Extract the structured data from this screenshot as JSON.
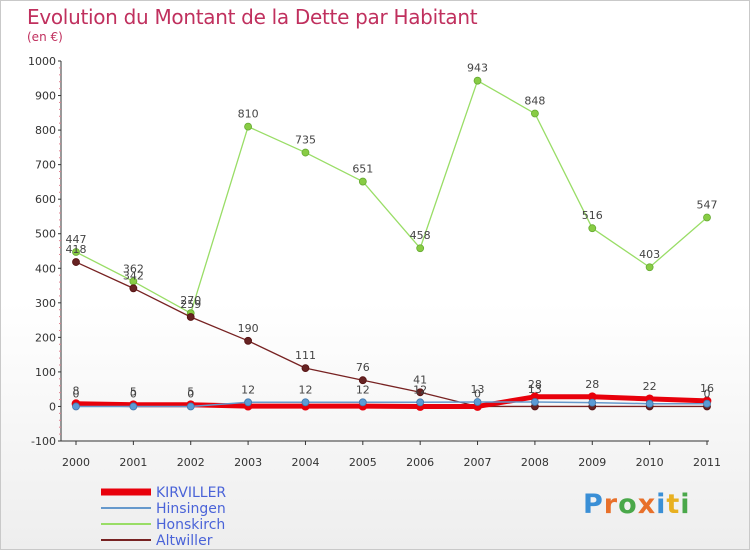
{
  "title": "Evolution du Montant de la Dette par Habitant",
  "unit": "(en €)",
  "logo": {
    "text": "Proxiti",
    "colors": [
      "#3a8fd6",
      "#e8702a",
      "#4aa84a",
      "#e8702a",
      "#3a8fd6",
      "#e8b020",
      "#4aa84a"
    ]
  },
  "chart_data": {
    "type": "line",
    "x": [
      "2000",
      "2001",
      "2002",
      "2003",
      "2004",
      "2005",
      "2006",
      "2007",
      "2008",
      "2009",
      "2010",
      "2011"
    ],
    "ylim": [
      -100,
      1000
    ],
    "yticks": [
      "-100",
      "0",
      "100",
      "200",
      "300",
      "400",
      "500",
      "600",
      "700",
      "800",
      "900",
      "1000"
    ],
    "grid": false,
    "legend_position": "bottom-left",
    "series": [
      {
        "name": "KIRVILLER",
        "color": "#e8000b",
        "values": [
          8,
          5,
          5,
          1,
          1,
          1,
          0,
          0,
          28,
          28,
          22,
          16
        ],
        "labels": [
          "8",
          "5",
          "5",
          "",
          "",
          "",
          "",
          "",
          "28",
          "28",
          "22",
          "16"
        ]
      },
      {
        "name": "Hinsingen",
        "color": "#6699cc",
        "values": [
          0,
          0,
          0,
          12,
          12,
          12,
          12,
          13,
          13,
          11,
          8,
          8
        ],
        "labels": [
          "0",
          "0",
          "0",
          "12",
          "12",
          "12",
          "12",
          "13",
          "13",
          "",
          "",
          ""
        ]
      },
      {
        "name": "Honskirch",
        "color": "#99dd66",
        "values": [
          447,
          362,
          270,
          810,
          735,
          651,
          458,
          943,
          848,
          516,
          403,
          547
        ],
        "labels": [
          "447",
          "362",
          "270",
          "810",
          "735",
          "651",
          "458",
          "943",
          "848",
          "516",
          "403",
          "547"
        ]
      },
      {
        "name": "Altwiller",
        "color": "#772222",
        "values": [
          418,
          342,
          259,
          190,
          111,
          76,
          41,
          0,
          0,
          0,
          0,
          0
        ],
        "labels": [
          "418",
          "342",
          "259",
          "190",
          "111",
          "76",
          "41",
          "0",
          "",
          "",
          "",
          "0"
        ]
      }
    ]
  }
}
